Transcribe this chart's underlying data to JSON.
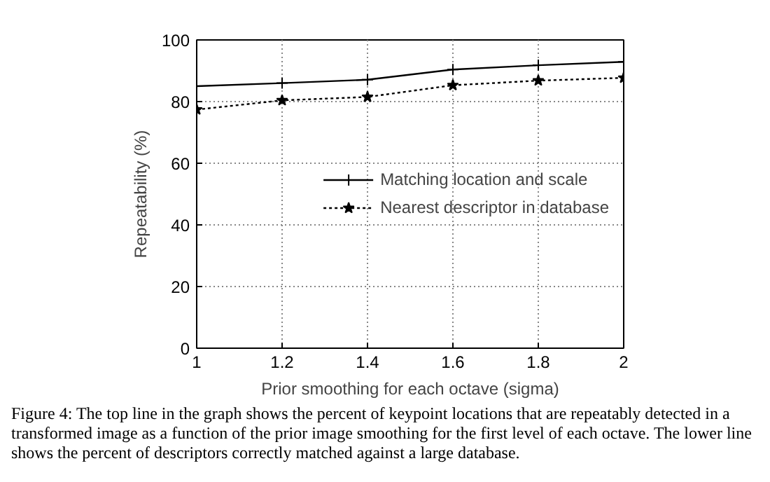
{
  "chart_data": {
    "type": "line",
    "xlabel": "Prior smoothing for each octave (sigma)",
    "ylabel": "Repeatability (%)",
    "x": [
      1,
      1.2,
      1.4,
      1.6,
      1.8,
      2
    ],
    "series": [
      {
        "name": "Matching location and scale",
        "color": "#000000",
        "values": [
          85.0,
          86.0,
          87.1,
          90.4,
          91.8,
          92.9
        ],
        "marker": "cross",
        "line_style": "solid"
      },
      {
        "name": "Nearest descriptor in database",
        "color": "#000000",
        "values": [
          77.4,
          80.4,
          81.5,
          85.3,
          86.8,
          87.7
        ],
        "marker": "star",
        "line_style": "dotted"
      }
    ],
    "xlim": [
      1,
      2
    ],
    "xticks": [
      1,
      1.2,
      1.4,
      1.6,
      1.8,
      2
    ],
    "ylim": [
      0,
      100
    ],
    "yticks": [
      0,
      20,
      40,
      60,
      80,
      100
    ],
    "grid": true,
    "legend": "right",
    "annotations": [
      "Figure 4: The top line in the graph shows the percent of keypoint locations that are repeatably detected in a transformed image as a function of the prior image smoothing for the first level of each octave. The lower line shows the percent of descriptors correctly matched against a large database."
    ]
  }
}
